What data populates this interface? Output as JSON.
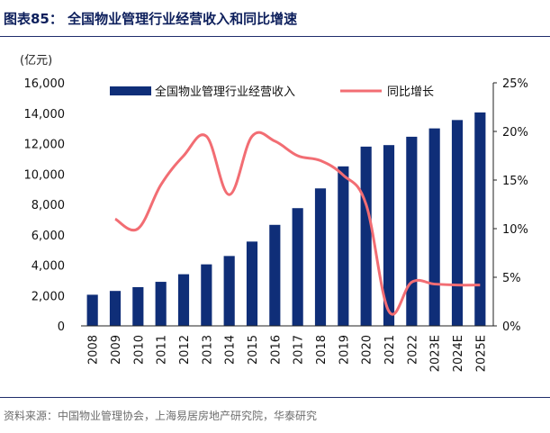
{
  "header": {
    "title": "图表85： 全国物业管理行业经营收入和同比增速"
  },
  "unit_label": "(亿元)",
  "source": "资料来源：中国物业管理协会，上海易居房地产研究院，华泰研究",
  "colors": {
    "bar": "#0f2e78",
    "line": "#f26d73",
    "rule": "#1f2d6b"
  },
  "chart_data": {
    "type": "bar",
    "categories": [
      "2008",
      "2009",
      "2010",
      "2011",
      "2012",
      "2013",
      "2014",
      "2015",
      "2016",
      "2017",
      "2018",
      "2019",
      "2020",
      "2021",
      "2022",
      "2023E",
      "2024E",
      "2025E"
    ],
    "series": [
      {
        "name": "全国物业管理行业经营收入",
        "type": "bar",
        "axis": "left",
        "values": [
          2050,
          2300,
          2550,
          2900,
          3400,
          4050,
          4600,
          5550,
          6650,
          7750,
          9050,
          10500,
          11800,
          11900,
          12450,
          13000,
          13550,
          14050
        ]
      },
      {
        "name": "同比增长",
        "type": "line",
        "axis": "right",
        "values": [
          null,
          11.0,
          10.0,
          14.5,
          17.5,
          19.5,
          13.5,
          19.5,
          19.0,
          17.5,
          17.0,
          15.5,
          12.5,
          1.5,
          4.5,
          4.3,
          4.2,
          4.2
        ]
      }
    ],
    "ylim_left": [
      0,
      16000
    ],
    "yticks_left": [
      "0",
      "2,000",
      "4,000",
      "6,000",
      "8,000",
      "10,000",
      "12,000",
      "14,000",
      "16,000"
    ],
    "yticks_left_values": [
      0,
      2000,
      4000,
      6000,
      8000,
      10000,
      12000,
      14000,
      16000
    ],
    "ylim_right": [
      0,
      25
    ],
    "yticks_right": [
      "0%",
      "5%",
      "10%",
      "15%",
      "20%",
      "25%"
    ],
    "yticks_right_values": [
      0,
      5,
      10,
      15,
      20,
      25
    ],
    "legend_position": "top",
    "grid": false
  }
}
